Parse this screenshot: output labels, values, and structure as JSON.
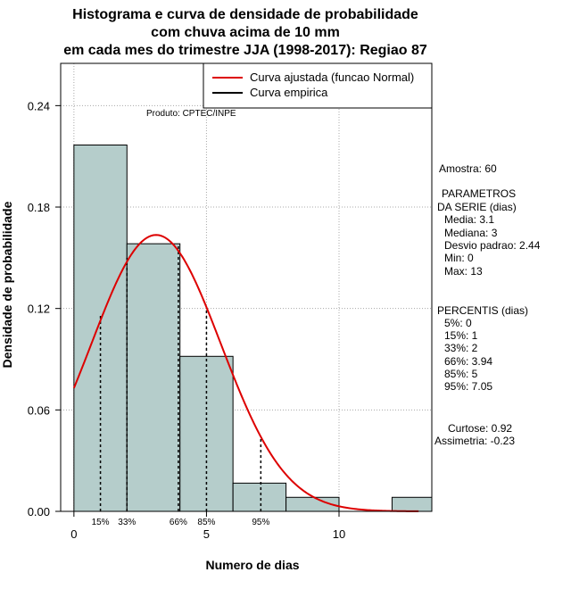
{
  "title_lines": [
    "Histograma e curva de densidade de probabilidade",
    "com chuva acima de 10 mm",
    "em cada mes do trimestre JJA (1998-2017): Regiao 87"
  ],
  "product": "Produto: CPTEC/INPE",
  "legend": {
    "items": [
      {
        "label": "Curva ajustada (funcao Normal)",
        "color": "#dd0000"
      },
      {
        "label": "Curva empirica",
        "color": "#000000"
      }
    ],
    "placement": "top-right"
  },
  "stats": {
    "sample": "Amostra: 60",
    "params_header": [
      "PARAMETROS",
      "DA SERIE (dias)"
    ],
    "params": [
      "Media: 3.1",
      "Mediana: 3",
      "Desvio padrao: 2.44",
      "Min: 0",
      "Max: 13"
    ],
    "percentis_header": "PERCENTIS (dias)",
    "percentis": [
      "5%: 0",
      "15%: 1",
      "33%: 2",
      "66%: 3.94",
      "85%: 5",
      "95%: 7.05"
    ],
    "kurtosis": "Curtose: 0.92",
    "skewness": "Assimetria: -0.23"
  },
  "colors": {
    "bar_fill": "#b5cdcb",
    "bar_stroke": "#000000",
    "normal_curve": "#dd0000",
    "grid": "#a8a8a8"
  },
  "chart_data": {
    "type": "bar",
    "title": "Histograma e curva de densidade de probabilidade com chuva acima de 10 mm em cada mes do trimestre JJA (1998-2017): Regiao 87",
    "xlabel": "Numero de dias",
    "ylabel": "Densidade de probabilidade",
    "xlim": [
      -0.5,
      13.5
    ],
    "ylim": [
      0,
      0.265
    ],
    "x_ticks": [
      0,
      5,
      10
    ],
    "y_ticks": [
      0.0,
      0.06,
      0.12,
      0.18,
      0.24
    ],
    "y_tick_labels": [
      "0.00",
      "0.06",
      "0.12",
      "0.18",
      "0.24"
    ],
    "grid": true,
    "bins": [
      {
        "x0": 0,
        "x1": 2,
        "density": 0.2167
      },
      {
        "x0": 2,
        "x1": 4,
        "density": 0.1583
      },
      {
        "x0": 4,
        "x1": 6,
        "density": 0.0917
      },
      {
        "x0": 6,
        "x1": 8,
        "density": 0.0167
      },
      {
        "x0": 8,
        "x1": 10,
        "density": 0.0083
      },
      {
        "x0": 10,
        "x1": 12,
        "density": 0.0
      },
      {
        "x0": 12,
        "x1": 14,
        "density": 0.0083
      }
    ],
    "normal_fit": {
      "mean": 3.1,
      "sd": 2.44,
      "x_range": [
        0,
        13
      ]
    },
    "percentile_markers": [
      {
        "label": "15%",
        "x": 1,
        "height": 0.117
      },
      {
        "label": "33%",
        "x": 2,
        "height": 0.15
      },
      {
        "label": "66%",
        "x": 3.94,
        "height": 0.157
      },
      {
        "label": "85%",
        "x": 5,
        "height": 0.12
      },
      {
        "label": "95%",
        "x": 7.05,
        "height": 0.044
      }
    ]
  }
}
